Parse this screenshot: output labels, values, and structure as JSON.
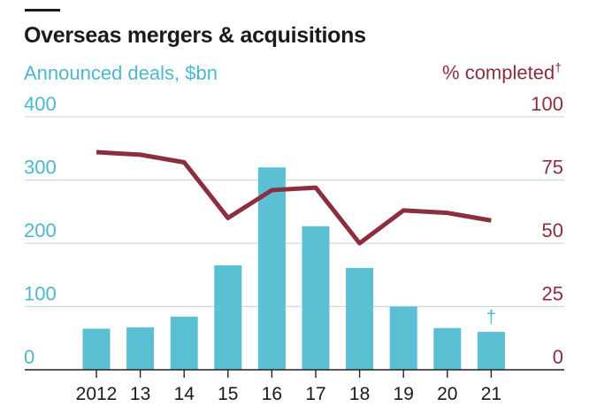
{
  "chart_data": {
    "type": "bar",
    "title": "Overseas mergers & acquisitions",
    "categories": [
      "2012",
      "13",
      "14",
      "15",
      "16",
      "17",
      "18",
      "19",
      "20",
      "21"
    ],
    "y_left": {
      "label": "Announced deals, $bn",
      "range": [
        0,
        400
      ],
      "ticks": [
        "0",
        "100",
        "200",
        "300",
        "400"
      ]
    },
    "y_right": {
      "label": "% completed",
      "label_marker": "†",
      "range": [
        0,
        100
      ],
      "ticks": [
        "0",
        "25",
        "50",
        "75",
        "100"
      ]
    },
    "series": [
      {
        "name": "Announced deals, $bn",
        "type": "bar",
        "axis": "left",
        "values": [
          65,
          67,
          84,
          165,
          320,
          227,
          161,
          100,
          66,
          60
        ],
        "color": "#5bc0d4"
      },
      {
        "name": "% completed",
        "type": "line",
        "axis": "right",
        "values": [
          86,
          85,
          82,
          60,
          71,
          72,
          50,
          63,
          62,
          59
        ],
        "color": "#8b2e3e"
      }
    ],
    "annotations": [
      {
        "category": "21",
        "text": "†"
      }
    ],
    "grid": true,
    "colors": {
      "bar": "#5bc0d4",
      "line": "#8b2e3e",
      "left_text": "#4bb8cd",
      "right_text": "#8b2e3e",
      "grid": "#c7dde4",
      "axis": "#222222"
    }
  }
}
